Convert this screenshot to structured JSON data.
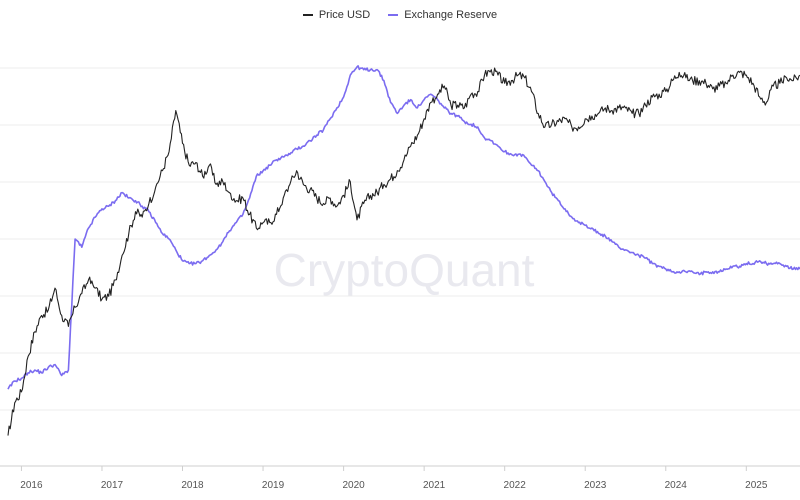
{
  "legend": {
    "items": [
      {
        "label": "Price USD",
        "color": "#222222"
      },
      {
        "label": "Exchange Reserve",
        "color": "#7b6cf0"
      }
    ]
  },
  "watermark": "CryptoQuant",
  "chart_data": {
    "type": "line",
    "xlabel": "",
    "ylabel": "",
    "grid": true,
    "legend_position": "top-center",
    "x_ticks": [
      "2016",
      "2017",
      "2018",
      "2019",
      "2020",
      "2021",
      "2022",
      "2023",
      "2024",
      "2025"
    ],
    "xlim": [
      "2015-11",
      "2025-09"
    ],
    "series": [
      {
        "name": "Price USD",
        "color": "#222222",
        "points": [
          [
            "2015-11",
            0.06
          ],
          [
            "2015-12",
            0.18
          ],
          [
            "2016-01",
            0.22
          ],
          [
            "2016-02",
            0.35
          ],
          [
            "2016-03",
            0.44
          ],
          [
            "2016-04",
            0.5
          ],
          [
            "2016-05",
            0.52
          ],
          [
            "2016-06",
            0.6
          ],
          [
            "2016-07",
            0.5
          ],
          [
            "2016-08",
            0.46
          ],
          [
            "2016-09",
            0.53
          ],
          [
            "2016-10",
            0.58
          ],
          [
            "2016-11",
            0.63
          ],
          [
            "2016-12",
            0.6
          ],
          [
            "2017-01",
            0.56
          ],
          [
            "2017-02",
            0.57
          ],
          [
            "2017-03",
            0.63
          ],
          [
            "2017-04",
            0.72
          ],
          [
            "2017-05",
            0.8
          ],
          [
            "2017-06",
            0.88
          ],
          [
            "2017-07",
            0.86
          ],
          [
            "2017-08",
            0.91
          ],
          [
            "2017-09",
            0.97
          ],
          [
            "2017-10",
            1.03
          ],
          [
            "2017-11",
            1.1
          ],
          [
            "2017-12",
            1.25
          ],
          [
            "2018-01",
            1.13
          ],
          [
            "2018-02",
            1.05
          ],
          [
            "2018-03",
            1.06
          ],
          [
            "2018-04",
            1.01
          ],
          [
            "2018-05",
            1.05
          ],
          [
            "2018-06",
            0.98
          ],
          [
            "2018-07",
            0.99
          ],
          [
            "2018-08",
            0.95
          ],
          [
            "2018-09",
            0.92
          ],
          [
            "2018-10",
            0.93
          ],
          [
            "2018-11",
            0.87
          ],
          [
            "2018-12",
            0.82
          ],
          [
            "2019-01",
            0.84
          ],
          [
            "2019-02",
            0.84
          ],
          [
            "2019-03",
            0.87
          ],
          [
            "2019-04",
            0.93
          ],
          [
            "2019-05",
            0.98
          ],
          [
            "2019-06",
            1.03
          ],
          [
            "2019-07",
            0.98
          ],
          [
            "2019-08",
            0.96
          ],
          [
            "2019-09",
            0.93
          ],
          [
            "2019-10",
            0.91
          ],
          [
            "2019-11",
            0.93
          ],
          [
            "2019-12",
            0.9
          ],
          [
            "2020-01",
            0.94
          ],
          [
            "2020-02",
            0.99
          ],
          [
            "2020-03",
            0.85
          ],
          [
            "2020-04",
            0.91
          ],
          [
            "2020-05",
            0.94
          ],
          [
            "2020-06",
            0.95
          ],
          [
            "2020-07",
            0.98
          ],
          [
            "2020-08",
            1.0
          ],
          [
            "2020-09",
            1.03
          ],
          [
            "2020-10",
            1.07
          ],
          [
            "2020-11",
            1.12
          ],
          [
            "2020-12",
            1.16
          ],
          [
            "2021-01",
            1.22
          ],
          [
            "2021-02",
            1.28
          ],
          [
            "2021-03",
            1.31
          ],
          [
            "2021-04",
            1.34
          ],
          [
            "2021-05",
            1.27
          ],
          [
            "2021-06",
            1.27
          ],
          [
            "2021-07",
            1.26
          ],
          [
            "2021-08",
            1.31
          ],
          [
            "2021-09",
            1.32
          ],
          [
            "2021-10",
            1.38
          ],
          [
            "2021-11",
            1.4
          ],
          [
            "2021-12",
            1.38
          ],
          [
            "2022-01",
            1.35
          ],
          [
            "2022-02",
            1.36
          ],
          [
            "2022-03",
            1.38
          ],
          [
            "2022-04",
            1.37
          ],
          [
            "2022-05",
            1.32
          ],
          [
            "2022-06",
            1.24
          ],
          [
            "2022-07",
            1.19
          ],
          [
            "2022-08",
            1.2
          ],
          [
            "2022-09",
            1.21
          ],
          [
            "2022-10",
            1.22
          ],
          [
            "2022-11",
            1.19
          ],
          [
            "2022-12",
            1.19
          ],
          [
            "2023-01",
            1.22
          ],
          [
            "2023-02",
            1.23
          ],
          [
            "2023-03",
            1.24
          ],
          [
            "2023-04",
            1.26
          ],
          [
            "2023-05",
            1.25
          ],
          [
            "2023-06",
            1.26
          ],
          [
            "2023-07",
            1.26
          ],
          [
            "2023-08",
            1.24
          ],
          [
            "2023-09",
            1.24
          ],
          [
            "2023-10",
            1.27
          ],
          [
            "2023-11",
            1.3
          ],
          [
            "2023-12",
            1.31
          ],
          [
            "2024-01",
            1.32
          ],
          [
            "2024-02",
            1.36
          ],
          [
            "2024-03",
            1.39
          ],
          [
            "2024-04",
            1.37
          ],
          [
            "2024-05",
            1.36
          ],
          [
            "2024-06",
            1.36
          ],
          [
            "2024-07",
            1.35
          ],
          [
            "2024-08",
            1.33
          ],
          [
            "2024-09",
            1.34
          ],
          [
            "2024-10",
            1.35
          ],
          [
            "2024-11",
            1.38
          ],
          [
            "2024-12",
            1.39
          ],
          [
            "2025-01",
            1.38
          ],
          [
            "2025-02",
            1.35
          ],
          [
            "2025-03",
            1.3
          ],
          [
            "2025-04",
            1.28
          ],
          [
            "2025-05",
            1.34
          ],
          [
            "2025-06",
            1.35
          ],
          [
            "2025-07",
            1.37
          ],
          [
            "2025-08",
            1.36
          ],
          [
            "2025-09",
            1.38
          ]
        ]
      },
      {
        "name": "Exchange Reserve",
        "color": "#7b6cf0",
        "points": [
          [
            "2015-11",
            0.23
          ],
          [
            "2015-12",
            0.26
          ],
          [
            "2016-01",
            0.27
          ],
          [
            "2016-02",
            0.29
          ],
          [
            "2016-03",
            0.3
          ],
          [
            "2016-04",
            0.29
          ],
          [
            "2016-05",
            0.31
          ],
          [
            "2016-06",
            0.32
          ],
          [
            "2016-07",
            0.28
          ],
          [
            "2016-08",
            0.3
          ],
          [
            "2016-09",
            0.78
          ],
          [
            "2016-10",
            0.75
          ],
          [
            "2016-11",
            0.82
          ],
          [
            "2016-12",
            0.86
          ],
          [
            "2017-01",
            0.89
          ],
          [
            "2017-02",
            0.9
          ],
          [
            "2017-03",
            0.92
          ],
          [
            "2017-04",
            0.95
          ],
          [
            "2017-05",
            0.93
          ],
          [
            "2017-06",
            0.92
          ],
          [
            "2017-07",
            0.9
          ],
          [
            "2017-08",
            0.88
          ],
          [
            "2017-09",
            0.84
          ],
          [
            "2017-10",
            0.8
          ],
          [
            "2017-11",
            0.78
          ],
          [
            "2017-12",
            0.74
          ],
          [
            "2018-01",
            0.7
          ],
          [
            "2018-02",
            0.69
          ],
          [
            "2018-03",
            0.69
          ],
          [
            "2018-04",
            0.7
          ],
          [
            "2018-05",
            0.72
          ],
          [
            "2018-06",
            0.74
          ],
          [
            "2018-07",
            0.77
          ],
          [
            "2018-08",
            0.81
          ],
          [
            "2018-09",
            0.84
          ],
          [
            "2018-10",
            0.87
          ],
          [
            "2018-11",
            0.93
          ],
          [
            "2018-12",
            1.01
          ],
          [
            "2019-01",
            1.03
          ],
          [
            "2019-02",
            1.05
          ],
          [
            "2019-03",
            1.07
          ],
          [
            "2019-04",
            1.08
          ],
          [
            "2019-05",
            1.09
          ],
          [
            "2019-06",
            1.11
          ],
          [
            "2019-07",
            1.12
          ],
          [
            "2019-08",
            1.14
          ],
          [
            "2019-09",
            1.16
          ],
          [
            "2019-10",
            1.18
          ],
          [
            "2019-11",
            1.22
          ],
          [
            "2019-12",
            1.26
          ],
          [
            "2020-01",
            1.3
          ],
          [
            "2020-02",
            1.38
          ],
          [
            "2020-03",
            1.41
          ],
          [
            "2020-04",
            1.4
          ],
          [
            "2020-05",
            1.4
          ],
          [
            "2020-06",
            1.4
          ],
          [
            "2020-07",
            1.36
          ],
          [
            "2020-08",
            1.28
          ],
          [
            "2020-09",
            1.24
          ],
          [
            "2020-10",
            1.27
          ],
          [
            "2020-11",
            1.29
          ],
          [
            "2020-12",
            1.26
          ],
          [
            "2021-01",
            1.29
          ],
          [
            "2021-02",
            1.31
          ],
          [
            "2021-03",
            1.29
          ],
          [
            "2021-04",
            1.26
          ],
          [
            "2021-05",
            1.24
          ],
          [
            "2021-06",
            1.23
          ],
          [
            "2021-07",
            1.21
          ],
          [
            "2021-08",
            1.2
          ],
          [
            "2021-09",
            1.19
          ],
          [
            "2021-10",
            1.15
          ],
          [
            "2021-11",
            1.14
          ],
          [
            "2021-12",
            1.12
          ],
          [
            "2022-01",
            1.1
          ],
          [
            "2022-02",
            1.09
          ],
          [
            "2022-03",
            1.09
          ],
          [
            "2022-04",
            1.08
          ],
          [
            "2022-05",
            1.05
          ],
          [
            "2022-06",
            1.03
          ],
          [
            "2022-07",
            0.99
          ],
          [
            "2022-08",
            0.95
          ],
          [
            "2022-09",
            0.92
          ],
          [
            "2022-10",
            0.89
          ],
          [
            "2022-11",
            0.86
          ],
          [
            "2022-12",
            0.84
          ],
          [
            "2023-01",
            0.83
          ],
          [
            "2023-02",
            0.82
          ],
          [
            "2023-03",
            0.8
          ],
          [
            "2023-04",
            0.79
          ],
          [
            "2023-05",
            0.77
          ],
          [
            "2023-06",
            0.75
          ],
          [
            "2023-07",
            0.74
          ],
          [
            "2023-08",
            0.73
          ],
          [
            "2023-09",
            0.72
          ],
          [
            "2023-10",
            0.71
          ],
          [
            "2023-11",
            0.69
          ],
          [
            "2023-12",
            0.68
          ],
          [
            "2024-01",
            0.67
          ],
          [
            "2024-02",
            0.66
          ],
          [
            "2024-03",
            0.66
          ],
          [
            "2024-04",
            0.66
          ],
          [
            "2024-05",
            0.66
          ],
          [
            "2024-06",
            0.65
          ],
          [
            "2024-07",
            0.66
          ],
          [
            "2024-08",
            0.66
          ],
          [
            "2024-09",
            0.66
          ],
          [
            "2024-10",
            0.67
          ],
          [
            "2024-11",
            0.68
          ],
          [
            "2024-12",
            0.68
          ],
          [
            "2025-01",
            0.69
          ],
          [
            "2025-02",
            0.69
          ],
          [
            "2025-03",
            0.7
          ],
          [
            "2025-04",
            0.69
          ],
          [
            "2025-05",
            0.69
          ],
          [
            "2025-06",
            0.69
          ],
          [
            "2025-07",
            0.68
          ],
          [
            "2025-08",
            0.67
          ],
          [
            "2025-09",
            0.67
          ]
        ]
      }
    ]
  }
}
